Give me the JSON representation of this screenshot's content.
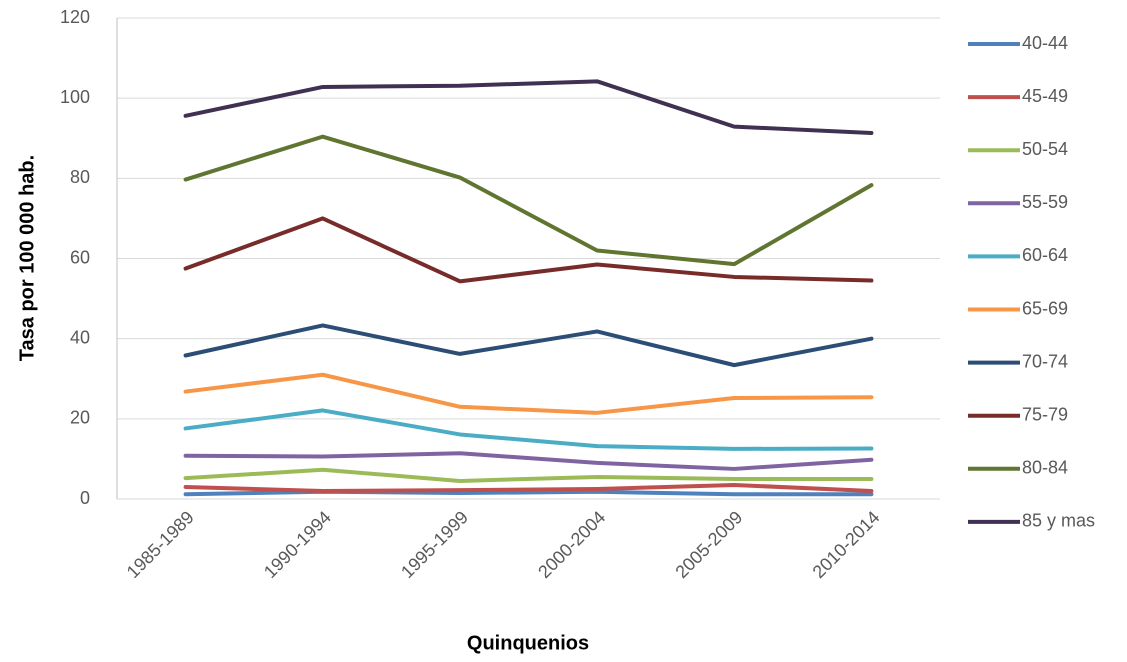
{
  "chart_data": {
    "type": "line",
    "x_label": "Quinquenios",
    "y_label": "Tasa por 100 000 hab.",
    "categories": [
      "1985-1989",
      "1990-1994",
      "1995-1999",
      "2000-2004",
      "2005-2009",
      "2010-2014"
    ],
    "ylim": [
      0,
      120
    ],
    "yticks": [
      0,
      20,
      40,
      60,
      80,
      100,
      120
    ],
    "grid": true,
    "legend": "right",
    "series": [
      {
        "name": "40-44",
        "color": "#4f81bd",
        "values": [
          1.2,
          1.8,
          1.5,
          1.8,
          1.2,
          1.2
        ]
      },
      {
        "name": "45-49",
        "color": "#c0504d",
        "values": [
          3,
          2,
          2.2,
          2.5,
          3.5,
          2
        ]
      },
      {
        "name": "50-54",
        "color": "#9bbb59",
        "values": [
          5.2,
          7.3,
          4.5,
          5.5,
          5,
          5
        ]
      },
      {
        "name": "55-59",
        "color": "#8064a2",
        "values": [
          10.8,
          10.6,
          11.4,
          9,
          7.5,
          9.8
        ]
      },
      {
        "name": "60-64",
        "color": "#4bacc6",
        "values": [
          17.6,
          22.1,
          16.1,
          13.2,
          12.5,
          12.6
        ]
      },
      {
        "name": "65-69",
        "color": "#f79646",
        "values": [
          26.8,
          31,
          23,
          21.5,
          25.2,
          25.4
        ]
      },
      {
        "name": "70-74",
        "color": "#2c4d75",
        "values": [
          35.8,
          43.3,
          36.2,
          41.8,
          33.4,
          40
        ]
      },
      {
        "name": "75-79",
        "color": "#772c2a",
        "values": [
          57.5,
          70,
          54.3,
          58.5,
          55.4,
          54.5
        ]
      },
      {
        "name": "80-84",
        "color": "#5f7530",
        "values": [
          79.7,
          90.4,
          80.2,
          62,
          58.6,
          78.3
        ]
      },
      {
        "name": "85 y mas",
        "color": "#403152",
        "values": [
          95.6,
          102.8,
          103.1,
          104.2,
          92.9,
          91.3
        ]
      }
    ]
  }
}
